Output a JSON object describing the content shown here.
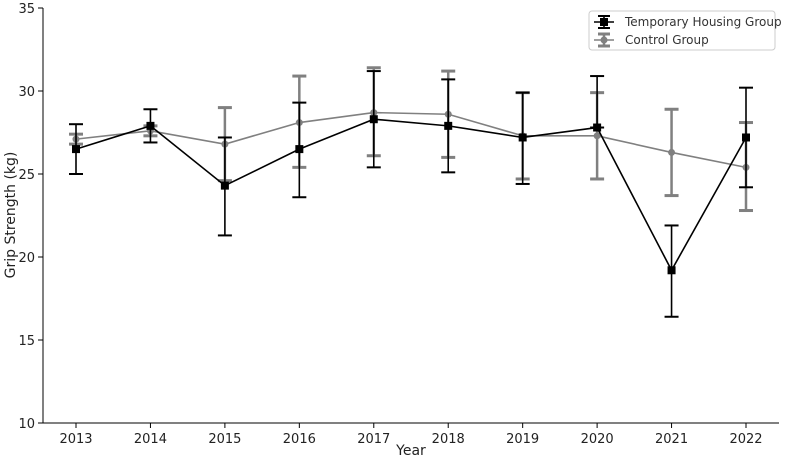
{
  "chart_data": {
    "type": "line",
    "xlabel": "Year",
    "ylabel": "Grip Strength (kg)",
    "x": [
      2013,
      2014,
      2015,
      2016,
      2017,
      2018,
      2019,
      2020,
      2021,
      2022
    ],
    "ylim": [
      10,
      35
    ],
    "yticks": [
      10,
      15,
      20,
      25,
      30,
      35
    ],
    "grid": false,
    "legend_position": "top-right",
    "series": [
      {
        "name": "Temporary Housing Group",
        "color": "#000000",
        "marker": "square",
        "values": [
          26.5,
          27.9,
          24.3,
          26.5,
          28.3,
          27.9,
          27.2,
          27.8,
          19.2,
          27.2
        ],
        "err_low": [
          25.0,
          26.9,
          21.3,
          23.6,
          25.4,
          25.1,
          24.4,
          27.8,
          16.4,
          24.2
        ],
        "err_high": [
          28.0,
          28.9,
          27.2,
          29.3,
          31.2,
          30.7,
          29.9,
          30.9,
          21.9,
          30.2
        ]
      },
      {
        "name": "Control Group",
        "color": "#808080",
        "marker": "circle",
        "values": [
          27.1,
          27.6,
          26.8,
          28.1,
          28.7,
          28.6,
          27.3,
          27.3,
          26.3,
          25.4
        ],
        "err_low": [
          26.8,
          27.3,
          24.6,
          25.4,
          26.1,
          26.0,
          24.7,
          24.7,
          23.7,
          22.8
        ],
        "err_high": [
          27.4,
          27.9,
          29.0,
          30.9,
          31.4,
          31.2,
          29.9,
          29.9,
          28.9,
          28.1
        ]
      }
    ]
  }
}
